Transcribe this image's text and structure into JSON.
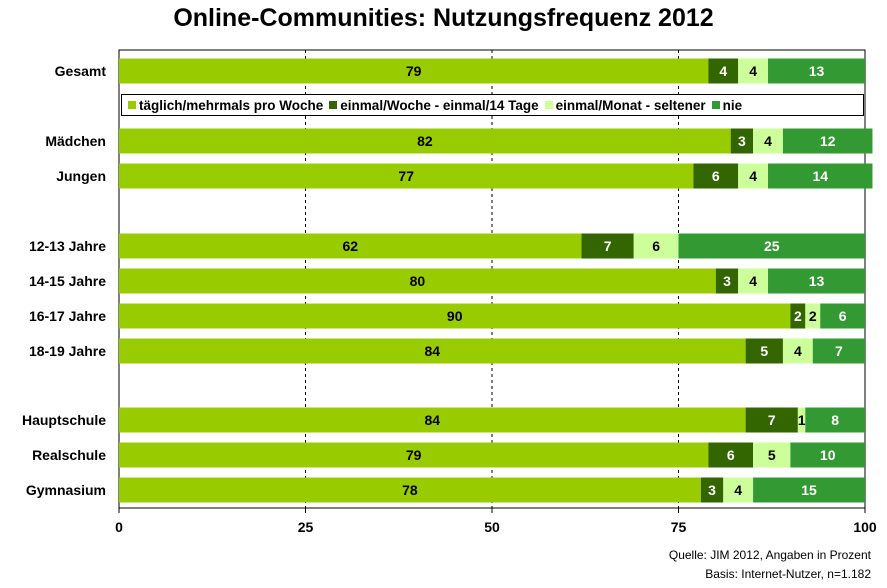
{
  "chart_data": {
    "type": "bar",
    "orientation": "horizontal",
    "stacked": true,
    "title": "Online-Communities: Nutzungsfrequenz 2012",
    "xlim": [
      0,
      100
    ],
    "xticks": [
      0,
      25,
      50,
      75,
      100
    ],
    "grid": "vertical dashed at 25, 50, 75",
    "legend_position": "inside-top",
    "categories": [
      "Gesamt",
      "Mädchen",
      "Jungen",
      "12-13 Jahre",
      "14-15 Jahre",
      "16-17 Jahre",
      "18-19 Jahre",
      "Hauptschule",
      "Realschule",
      "Gymnasium"
    ],
    "series": [
      {
        "name": "täglich/mehrmals pro Woche",
        "color": "#99cc00",
        "label_color": "#000000",
        "values": [
          79,
          82,
          77,
          62,
          80,
          90,
          84,
          84,
          79,
          78
        ]
      },
      {
        "name": "einmal/Woche - einmal/14 Tage",
        "color": "#336600",
        "label_color": "#ffffff",
        "values": [
          4,
          3,
          6,
          7,
          3,
          2,
          5,
          7,
          6,
          3
        ]
      },
      {
        "name": "einmal/Monat - seltener",
        "color": "#ccff99",
        "label_color": "#000000",
        "values": [
          4,
          4,
          4,
          6,
          4,
          2,
          4,
          1,
          5,
          4
        ]
      },
      {
        "name": "nie",
        "color": "#339933",
        "label_color": "#ffffff",
        "values": [
          13,
          12,
          14,
          25,
          13,
          6,
          7,
          8,
          10,
          15
        ]
      }
    ]
  },
  "source": {
    "line1": "Quelle: JIM 2012, Angaben in Prozent",
    "line2": "Basis: Internet-Nutzer, n=1.182"
  }
}
